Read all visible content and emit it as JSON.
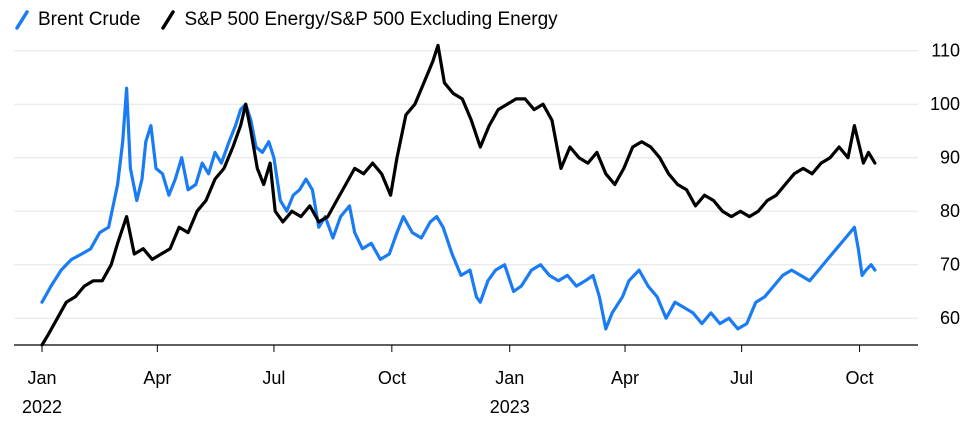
{
  "legend": [
    {
      "label": "Brent Crude",
      "color": "#1a7cf5",
      "icon": "slash-line-icon"
    },
    {
      "label": "S&P 500 Energy/S&P 500 Excluding Energy",
      "color": "#000000",
      "icon": "slash-line-icon"
    }
  ],
  "chart_data": {
    "type": "line",
    "title": "",
    "xlabel": "",
    "ylabel": "",
    "grid": "horizontal",
    "legend_position": "top-left",
    "y_axis_side": "right",
    "ylim": [
      55,
      112
    ],
    "xlim": [
      "2022-01-01",
      "2023-10-31"
    ],
    "y_ticks": [
      60,
      70,
      80,
      90,
      100,
      110
    ],
    "x_ticks": [
      {
        "date": "2022-01-01",
        "label": "Jan",
        "sublabel": "2022"
      },
      {
        "date": "2022-04-01",
        "label": "Apr",
        "sublabel": ""
      },
      {
        "date": "2022-07-01",
        "label": "Jul",
        "sublabel": ""
      },
      {
        "date": "2022-10-01",
        "label": "Oct",
        "sublabel": ""
      },
      {
        "date": "2023-01-01",
        "label": "Jan",
        "sublabel": "2023"
      },
      {
        "date": "2023-04-01",
        "label": "Apr",
        "sublabel": ""
      },
      {
        "date": "2023-07-01",
        "label": "Jul",
        "sublabel": ""
      },
      {
        "date": "2023-10-01",
        "label": "Oct",
        "sublabel": ""
      }
    ],
    "series": [
      {
        "name": "Brent Crude",
        "color": "#1a7cf5",
        "points": [
          [
            "2022-01-01",
            63
          ],
          [
            "2022-01-08",
            66
          ],
          [
            "2022-01-16",
            69
          ],
          [
            "2022-01-24",
            71
          ],
          [
            "2022-02-01",
            72
          ],
          [
            "2022-02-08",
            73
          ],
          [
            "2022-02-15",
            76
          ],
          [
            "2022-02-22",
            77
          ],
          [
            "2022-03-01",
            85
          ],
          [
            "2022-03-05",
            93
          ],
          [
            "2022-03-08",
            103
          ],
          [
            "2022-03-11",
            88
          ],
          [
            "2022-03-16",
            82
          ],
          [
            "2022-03-20",
            86
          ],
          [
            "2022-03-23",
            93
          ],
          [
            "2022-03-27",
            96
          ],
          [
            "2022-03-31",
            88
          ],
          [
            "2022-04-05",
            87
          ],
          [
            "2022-04-10",
            83
          ],
          [
            "2022-04-15",
            86
          ],
          [
            "2022-04-20",
            90
          ],
          [
            "2022-04-25",
            84
          ],
          [
            "2022-05-01",
            85
          ],
          [
            "2022-05-06",
            89
          ],
          [
            "2022-05-11",
            87
          ],
          [
            "2022-05-16",
            91
          ],
          [
            "2022-05-21",
            89
          ],
          [
            "2022-05-27",
            93
          ],
          [
            "2022-06-01",
            96
          ],
          [
            "2022-06-05",
            99
          ],
          [
            "2022-06-09",
            100
          ],
          [
            "2022-06-13",
            97
          ],
          [
            "2022-06-17",
            92
          ],
          [
            "2022-06-22",
            91
          ],
          [
            "2022-06-27",
            93
          ],
          [
            "2022-07-01",
            90
          ],
          [
            "2022-07-06",
            82
          ],
          [
            "2022-07-11",
            80
          ],
          [
            "2022-07-16",
            83
          ],
          [
            "2022-07-21",
            84
          ],
          [
            "2022-07-26",
            86
          ],
          [
            "2022-07-31",
            84
          ],
          [
            "2022-08-05",
            77
          ],
          [
            "2022-08-10",
            79
          ],
          [
            "2022-08-16",
            75
          ],
          [
            "2022-08-22",
            79
          ],
          [
            "2022-08-29",
            81
          ],
          [
            "2022-09-02",
            76
          ],
          [
            "2022-09-08",
            73
          ],
          [
            "2022-09-15",
            74
          ],
          [
            "2022-09-22",
            71
          ],
          [
            "2022-09-29",
            72
          ],
          [
            "2022-10-05",
            76
          ],
          [
            "2022-10-10",
            79
          ],
          [
            "2022-10-17",
            76
          ],
          [
            "2022-10-24",
            75
          ],
          [
            "2022-10-31",
            78
          ],
          [
            "2022-11-05",
            79
          ],
          [
            "2022-11-10",
            77
          ],
          [
            "2022-11-17",
            72
          ],
          [
            "2022-11-24",
            68
          ],
          [
            "2022-12-01",
            69
          ],
          [
            "2022-12-06",
            64
          ],
          [
            "2022-12-09",
            63
          ],
          [
            "2022-12-15",
            67
          ],
          [
            "2022-12-21",
            69
          ],
          [
            "2022-12-28",
            70
          ],
          [
            "2023-01-04",
            65
          ],
          [
            "2023-01-10",
            66
          ],
          [
            "2023-01-18",
            69
          ],
          [
            "2023-01-25",
            70
          ],
          [
            "2023-02-01",
            68
          ],
          [
            "2023-02-08",
            67
          ],
          [
            "2023-02-15",
            68
          ],
          [
            "2023-02-22",
            66
          ],
          [
            "2023-03-01",
            67
          ],
          [
            "2023-03-07",
            68
          ],
          [
            "2023-03-12",
            64
          ],
          [
            "2023-03-17",
            58
          ],
          [
            "2023-03-22",
            61
          ],
          [
            "2023-03-30",
            64
          ],
          [
            "2023-04-04",
            67
          ],
          [
            "2023-04-12",
            69
          ],
          [
            "2023-04-19",
            66
          ],
          [
            "2023-04-26",
            64
          ],
          [
            "2023-05-03",
            60
          ],
          [
            "2023-05-10",
            63
          ],
          [
            "2023-05-17",
            62
          ],
          [
            "2023-05-24",
            61
          ],
          [
            "2023-05-31",
            59
          ],
          [
            "2023-06-07",
            61
          ],
          [
            "2023-06-14",
            59
          ],
          [
            "2023-06-21",
            60
          ],
          [
            "2023-06-28",
            58
          ],
          [
            "2023-07-05",
            59
          ],
          [
            "2023-07-12",
            63
          ],
          [
            "2023-07-19",
            64
          ],
          [
            "2023-07-26",
            66
          ],
          [
            "2023-08-02",
            68
          ],
          [
            "2023-08-09",
            69
          ],
          [
            "2023-08-16",
            68
          ],
          [
            "2023-08-23",
            67
          ],
          [
            "2023-08-30",
            69
          ],
          [
            "2023-09-06",
            71
          ],
          [
            "2023-09-13",
            73
          ],
          [
            "2023-09-20",
            75
          ],
          [
            "2023-09-27",
            77
          ],
          [
            "2023-09-30",
            73
          ],
          [
            "2023-10-03",
            68
          ],
          [
            "2023-10-06",
            69
          ],
          [
            "2023-10-10",
            70
          ],
          [
            "2023-10-13",
            69
          ]
        ]
      },
      {
        "name": "S&P 500 Energy/S&P 500 Excluding Energy",
        "color": "#000000",
        "points": [
          [
            "2022-01-01",
            55
          ],
          [
            "2022-01-06",
            57
          ],
          [
            "2022-01-13",
            60
          ],
          [
            "2022-01-20",
            63
          ],
          [
            "2022-01-27",
            64
          ],
          [
            "2022-02-03",
            66
          ],
          [
            "2022-02-10",
            67
          ],
          [
            "2022-02-17",
            67
          ],
          [
            "2022-02-24",
            70
          ],
          [
            "2022-03-01",
            74
          ],
          [
            "2022-03-08",
            79
          ],
          [
            "2022-03-14",
            72
          ],
          [
            "2022-03-21",
            73
          ],
          [
            "2022-03-28",
            71
          ],
          [
            "2022-04-04",
            72
          ],
          [
            "2022-04-11",
            73
          ],
          [
            "2022-04-18",
            77
          ],
          [
            "2022-04-25",
            76
          ],
          [
            "2022-05-02",
            80
          ],
          [
            "2022-05-09",
            82
          ],
          [
            "2022-05-16",
            86
          ],
          [
            "2022-05-23",
            88
          ],
          [
            "2022-05-30",
            92
          ],
          [
            "2022-06-05",
            96
          ],
          [
            "2022-06-09",
            100
          ],
          [
            "2022-06-13",
            95
          ],
          [
            "2022-06-18",
            88
          ],
          [
            "2022-06-23",
            85
          ],
          [
            "2022-06-28",
            89
          ],
          [
            "2022-07-02",
            80
          ],
          [
            "2022-07-08",
            78
          ],
          [
            "2022-07-15",
            80
          ],
          [
            "2022-07-22",
            79
          ],
          [
            "2022-07-29",
            81
          ],
          [
            "2022-08-05",
            78
          ],
          [
            "2022-08-12",
            79
          ],
          [
            "2022-08-19",
            82
          ],
          [
            "2022-08-26",
            85
          ],
          [
            "2022-09-02",
            88
          ],
          [
            "2022-09-09",
            87
          ],
          [
            "2022-09-16",
            89
          ],
          [
            "2022-09-23",
            87
          ],
          [
            "2022-09-30",
            83
          ],
          [
            "2022-10-05",
            90
          ],
          [
            "2022-10-12",
            98
          ],
          [
            "2022-10-19",
            100
          ],
          [
            "2022-10-26",
            104
          ],
          [
            "2022-11-02",
            108
          ],
          [
            "2022-11-06",
            111
          ],
          [
            "2022-11-11",
            104
          ],
          [
            "2022-11-18",
            102
          ],
          [
            "2022-11-25",
            101
          ],
          [
            "2022-12-02",
            97
          ],
          [
            "2022-12-09",
            92
          ],
          [
            "2022-12-16",
            96
          ],
          [
            "2022-12-23",
            99
          ],
          [
            "2022-12-30",
            100
          ],
          [
            "2023-01-06",
            101
          ],
          [
            "2023-01-13",
            101
          ],
          [
            "2023-01-20",
            99
          ],
          [
            "2023-01-27",
            100
          ],
          [
            "2023-02-03",
            97
          ],
          [
            "2023-02-10",
            88
          ],
          [
            "2023-02-17",
            92
          ],
          [
            "2023-02-24",
            90
          ],
          [
            "2023-03-03",
            89
          ],
          [
            "2023-03-10",
            91
          ],
          [
            "2023-03-17",
            87
          ],
          [
            "2023-03-24",
            85
          ],
          [
            "2023-03-31",
            88
          ],
          [
            "2023-04-07",
            92
          ],
          [
            "2023-04-14",
            93
          ],
          [
            "2023-04-21",
            92
          ],
          [
            "2023-04-28",
            90
          ],
          [
            "2023-05-05",
            87
          ],
          [
            "2023-05-12",
            85
          ],
          [
            "2023-05-19",
            84
          ],
          [
            "2023-05-26",
            81
          ],
          [
            "2023-06-02",
            83
          ],
          [
            "2023-06-09",
            82
          ],
          [
            "2023-06-16",
            80
          ],
          [
            "2023-06-23",
            79
          ],
          [
            "2023-06-30",
            80
          ],
          [
            "2023-07-07",
            79
          ],
          [
            "2023-07-14",
            80
          ],
          [
            "2023-07-21",
            82
          ],
          [
            "2023-07-28",
            83
          ],
          [
            "2023-08-04",
            85
          ],
          [
            "2023-08-11",
            87
          ],
          [
            "2023-08-18",
            88
          ],
          [
            "2023-08-25",
            87
          ],
          [
            "2023-09-01",
            89
          ],
          [
            "2023-09-08",
            90
          ],
          [
            "2023-09-15",
            92
          ],
          [
            "2023-09-22",
            90
          ],
          [
            "2023-09-27",
            96
          ],
          [
            "2023-10-01",
            92
          ],
          [
            "2023-10-04",
            89
          ],
          [
            "2023-10-08",
            91
          ],
          [
            "2023-10-13",
            89
          ]
        ]
      }
    ]
  }
}
